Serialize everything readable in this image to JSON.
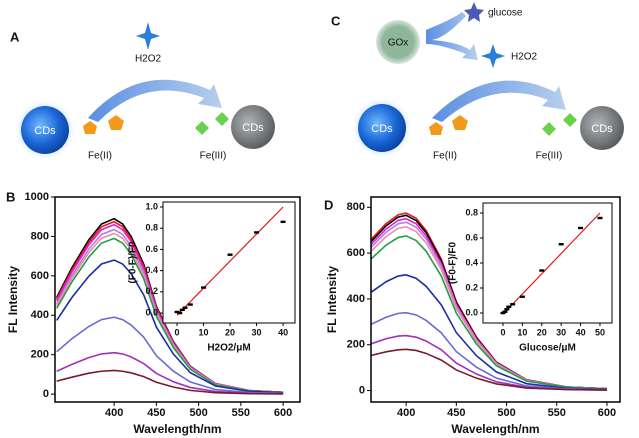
{
  "diagrams": {
    "a": {
      "label": "A",
      "star": "H2O2",
      "cds_left": "CDs",
      "ion_left": "Fe(II)",
      "ion_right": "Fe(III)",
      "cds_right": "CDs"
    },
    "c": {
      "label": "C",
      "enzyme": "GOx",
      "substrate": "glucose",
      "product": "H2O2",
      "cds_left": "CDs",
      "ion_left": "Fe(II)",
      "ion_right": "Fe(III)",
      "cds_right": "CDs"
    }
  },
  "chart_data": [
    {
      "type": "line",
      "label": "B",
      "xlabel": "Wavelength/nm",
      "ylabel": "FL Intensity",
      "x": [
        332,
        350,
        370,
        385,
        400,
        410,
        420,
        435,
        450,
        470,
        490,
        520,
        560,
        600
      ],
      "xlim": [
        330,
        620
      ],
      "xticks": [
        400,
        450,
        500,
        550,
        600
      ],
      "ylim": [
        -40,
        1000
      ],
      "yticks": [
        0,
        200,
        400,
        600,
        800,
        1000
      ],
      "series": [
        {
          "color": "#000000",
          "values": [
            490,
            641,
            783,
            863,
            890,
            863,
            801,
            659,
            445,
            267,
            142,
            53,
            18,
            9
          ]
        },
        {
          "color": "#e41a1c",
          "values": [
            481,
            630,
            770,
            849,
            875,
            849,
            788,
            648,
            438,
            263,
            140,
            53,
            18,
            9
          ]
        },
        {
          "color": "#e020d0",
          "values": [
            473,
            619,
            757,
            834,
            860,
            834,
            774,
            636,
            430,
            258,
            138,
            52,
            17,
            9
          ]
        },
        {
          "color": "#b27ee0",
          "values": [
            459,
            601,
            735,
            810,
            835,
            810,
            752,
            618,
            418,
            251,
            134,
            50,
            17,
            8
          ]
        },
        {
          "color": "#f08aa8",
          "values": [
            448,
            587,
            717,
            791,
            815,
            791,
            734,
            603,
            408,
            245,
            130,
            49,
            16,
            8
          ]
        },
        {
          "color": "#1fa045",
          "values": [
            435,
            569,
            695,
            766,
            790,
            766,
            711,
            585,
            395,
            237,
            126,
            47,
            16,
            8
          ]
        },
        {
          "color": "#1a2ea0",
          "values": [
            374,
            490,
            598,
            660,
            680,
            660,
            612,
            503,
            340,
            204,
            109,
            41,
            14,
            7
          ]
        },
        {
          "color": "#6a6ad8",
          "values": [
            215,
            281,
            343,
            378,
            390,
            378,
            351,
            289,
            195,
            117,
            62,
            23,
            8,
            4
          ]
        },
        {
          "color": "#a030c0",
          "values": [
            116,
            151,
            185,
            204,
            210,
            204,
            189,
            155,
            105,
            63,
            34,
            13,
            4,
            2
          ]
        },
        {
          "color": "#7a1a2a",
          "values": [
            66,
            86,
            106,
            116,
            120,
            116,
            108,
            89,
            60,
            36,
            19,
            7,
            2,
            1
          ]
        }
      ]
    },
    {
      "type": "scatter",
      "xlabel": "H2O2/μM",
      "ylabel": "(F0-F)/F0",
      "x": [
        0,
        1,
        2,
        3,
        5,
        10,
        20,
        30,
        40
      ],
      "values": [
        0.01,
        0.0,
        0.03,
        0.05,
        0.08,
        0.24,
        0.55,
        0.76,
        0.86
      ],
      "color": "#000000",
      "fit": {
        "x": [
          0,
          40
        ],
        "values": [
          -0.02,
          1.0
        ],
        "color": "#e41a1c"
      },
      "xlim": [
        -5.3,
        44.5
      ],
      "xticks": [
        0,
        10,
        20,
        30,
        40
      ],
      "ylim": [
        -0.094,
        1.047
      ],
      "yticks": [
        {
          "value": 0,
          "label": "0.0"
        },
        0.2,
        0.4,
        0.6,
        0.8,
        {
          "value": 1,
          "label": "1.0"
        }
      ]
    },
    {
      "type": "line",
      "label": "D",
      "xlabel": "Wavelength/nm",
      "ylabel": "FL Intensity",
      "x": [
        365,
        380,
        392,
        400,
        410,
        420,
        435,
        450,
        470,
        490,
        520,
        560,
        600
      ],
      "xlim": [
        365,
        613
      ],
      "xticks": [
        400,
        450,
        500,
        550,
        600
      ],
      "ylim": [
        -50,
        845
      ],
      "yticks": [
        0,
        200,
        400,
        600,
        800
      ],
      "series": [
        {
          "color": "#e41a1c",
          "values": [
            659,
            729,
            767,
            775,
            752,
            698,
            574,
            388,
            233,
            124,
            47,
            16,
            8
          ]
        },
        {
          "color": "#000000",
          "values": [
            650,
            719,
            757,
            765,
            742,
            689,
            566,
            383,
            230,
            122,
            46,
            15,
            8
          ]
        },
        {
          "color": "#e020d0",
          "values": [
            638,
            705,
            743,
            750,
            728,
            675,
            555,
            375,
            225,
            120,
            45,
            15,
            8
          ]
        },
        {
          "color": "#b27ee0",
          "values": [
            625,
            691,
            728,
            735,
            713,
            662,
            544,
            368,
            221,
            118,
            44,
            15,
            7
          ]
        },
        {
          "color": "#f08aa8",
          "values": [
            608,
            672,
            708,
            715,
            694,
            644,
            529,
            358,
            215,
            114,
            43,
            14,
            7
          ]
        },
        {
          "color": "#1fa045",
          "values": [
            574,
            635,
            668,
            675,
            655,
            608,
            500,
            338,
            203,
            108,
            41,
            14,
            7
          ]
        },
        {
          "color": "#1a2ea0",
          "values": [
            429,
            475,
            500,
            505,
            490,
            455,
            374,
            253,
            152,
            81,
            30,
            10,
            5
          ]
        },
        {
          "color": "#6a6ad8",
          "values": [
            289,
            320,
            337,
            340,
            330,
            306,
            252,
            170,
            102,
            54,
            20,
            7,
            3
          ]
        },
        {
          "color": "#a030c0",
          "values": [
            204,
            226,
            238,
            240,
            233,
            216,
            178,
            120,
            72,
            38,
            14,
            5,
            2
          ]
        },
        {
          "color": "#7a1a2a",
          "values": [
            153,
            169,
            178,
            180,
            175,
            162,
            133,
            90,
            54,
            29,
            11,
            4,
            2
          ]
        }
      ]
    },
    {
      "type": "scatter",
      "xlabel": "Glucose/μM",
      "ylabel": "(F0-F)/F0",
      "x": [
        0,
        1,
        2,
        3,
        5,
        10,
        20,
        30,
        40,
        50
      ],
      "values": [
        0.0,
        0.01,
        0.03,
        0.05,
        0.07,
        0.13,
        0.34,
        0.55,
        0.68,
        0.76
      ],
      "color": "#000000",
      "fit": {
        "x": [
          0,
          50
        ],
        "values": [
          -0.01,
          0.8
        ],
        "color": "#e41a1c"
      },
      "xlim": [
        -10.3,
        56.2
      ],
      "xticks": [
        0,
        10,
        20,
        30,
        40,
        50
      ],
      "ylim": [
        -0.08,
        0.88
      ],
      "yticks": [
        {
          "value": 0,
          "label": "0.0"
        },
        0.2,
        0.4,
        0.6,
        0.8
      ]
    }
  ]
}
